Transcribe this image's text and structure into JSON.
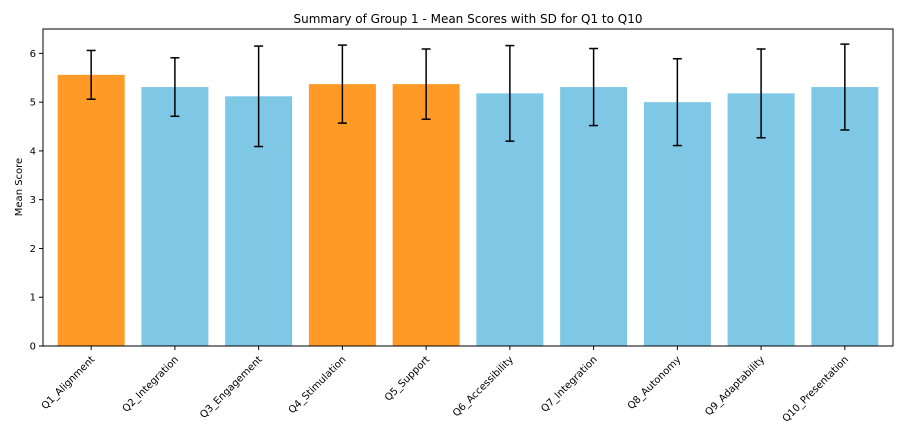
{
  "chart_data": {
    "type": "bar",
    "title": "Summary of Group 1 - Mean Scores with SD for Q1 to Q10",
    "xlabel": "",
    "ylabel": "Mean Score",
    "ylim": [
      0,
      6.5
    ],
    "yticks": [
      "0",
      "1",
      "2",
      "3",
      "4",
      "5",
      "6"
    ],
    "grid": false,
    "categories": [
      "Q1_Alignment",
      "Q2_Integration",
      "Q3_Engagement",
      "Q4_Stimulation",
      "Q5_Support",
      "Q6_Accessibility",
      "Q7_Integration",
      "Q8_Autonomy",
      "Q9_Adaptability",
      "Q10_Presentation"
    ],
    "values": [
      5.56,
      5.31,
      5.12,
      5.37,
      5.37,
      5.18,
      5.31,
      5.0,
      5.18,
      5.31
    ],
    "sd": [
      0.5,
      0.6,
      1.03,
      0.8,
      0.72,
      0.98,
      0.79,
      0.89,
      0.91,
      0.88
    ],
    "highlight": [
      true,
      false,
      false,
      true,
      true,
      false,
      false,
      false,
      false,
      false
    ],
    "colors": {
      "highlight": "#ff9a27",
      "default": "#7ec8e6",
      "error": "#000000"
    }
  }
}
